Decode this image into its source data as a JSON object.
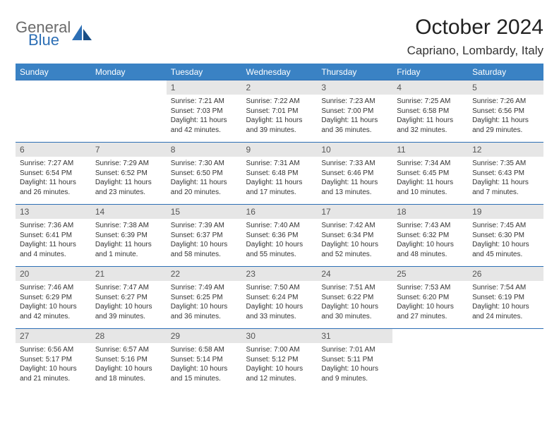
{
  "logo": {
    "general": "General",
    "blue": "Blue"
  },
  "title": "October 2024",
  "location": "Capriano, Lombardy, Italy",
  "colors": {
    "header_bg": "#3a82c4",
    "border": "#2d6fb5",
    "daynum_bg": "#e6e6e6",
    "logo_gray": "#6a6a6a",
    "logo_blue": "#2d6fb5"
  },
  "day_headers": [
    "Sunday",
    "Monday",
    "Tuesday",
    "Wednesday",
    "Thursday",
    "Friday",
    "Saturday"
  ],
  "leading_blanks": 2,
  "days": [
    {
      "n": 1,
      "sr": "7:21 AM",
      "ss": "7:03 PM",
      "dl": "11 hours and 42 minutes."
    },
    {
      "n": 2,
      "sr": "7:22 AM",
      "ss": "7:01 PM",
      "dl": "11 hours and 39 minutes."
    },
    {
      "n": 3,
      "sr": "7:23 AM",
      "ss": "7:00 PM",
      "dl": "11 hours and 36 minutes."
    },
    {
      "n": 4,
      "sr": "7:25 AM",
      "ss": "6:58 PM",
      "dl": "11 hours and 32 minutes."
    },
    {
      "n": 5,
      "sr": "7:26 AM",
      "ss": "6:56 PM",
      "dl": "11 hours and 29 minutes."
    },
    {
      "n": 6,
      "sr": "7:27 AM",
      "ss": "6:54 PM",
      "dl": "11 hours and 26 minutes."
    },
    {
      "n": 7,
      "sr": "7:29 AM",
      "ss": "6:52 PM",
      "dl": "11 hours and 23 minutes."
    },
    {
      "n": 8,
      "sr": "7:30 AM",
      "ss": "6:50 PM",
      "dl": "11 hours and 20 minutes."
    },
    {
      "n": 9,
      "sr": "7:31 AM",
      "ss": "6:48 PM",
      "dl": "11 hours and 17 minutes."
    },
    {
      "n": 10,
      "sr": "7:33 AM",
      "ss": "6:46 PM",
      "dl": "11 hours and 13 minutes."
    },
    {
      "n": 11,
      "sr": "7:34 AM",
      "ss": "6:45 PM",
      "dl": "11 hours and 10 minutes."
    },
    {
      "n": 12,
      "sr": "7:35 AM",
      "ss": "6:43 PM",
      "dl": "11 hours and 7 minutes."
    },
    {
      "n": 13,
      "sr": "7:36 AM",
      "ss": "6:41 PM",
      "dl": "11 hours and 4 minutes."
    },
    {
      "n": 14,
      "sr": "7:38 AM",
      "ss": "6:39 PM",
      "dl": "11 hours and 1 minute."
    },
    {
      "n": 15,
      "sr": "7:39 AM",
      "ss": "6:37 PM",
      "dl": "10 hours and 58 minutes."
    },
    {
      "n": 16,
      "sr": "7:40 AM",
      "ss": "6:36 PM",
      "dl": "10 hours and 55 minutes."
    },
    {
      "n": 17,
      "sr": "7:42 AM",
      "ss": "6:34 PM",
      "dl": "10 hours and 52 minutes."
    },
    {
      "n": 18,
      "sr": "7:43 AM",
      "ss": "6:32 PM",
      "dl": "10 hours and 48 minutes."
    },
    {
      "n": 19,
      "sr": "7:45 AM",
      "ss": "6:30 PM",
      "dl": "10 hours and 45 minutes."
    },
    {
      "n": 20,
      "sr": "7:46 AM",
      "ss": "6:29 PM",
      "dl": "10 hours and 42 minutes."
    },
    {
      "n": 21,
      "sr": "7:47 AM",
      "ss": "6:27 PM",
      "dl": "10 hours and 39 minutes."
    },
    {
      "n": 22,
      "sr": "7:49 AM",
      "ss": "6:25 PM",
      "dl": "10 hours and 36 minutes."
    },
    {
      "n": 23,
      "sr": "7:50 AM",
      "ss": "6:24 PM",
      "dl": "10 hours and 33 minutes."
    },
    {
      "n": 24,
      "sr": "7:51 AM",
      "ss": "6:22 PM",
      "dl": "10 hours and 30 minutes."
    },
    {
      "n": 25,
      "sr": "7:53 AM",
      "ss": "6:20 PM",
      "dl": "10 hours and 27 minutes."
    },
    {
      "n": 26,
      "sr": "7:54 AM",
      "ss": "6:19 PM",
      "dl": "10 hours and 24 minutes."
    },
    {
      "n": 27,
      "sr": "6:56 AM",
      "ss": "5:17 PM",
      "dl": "10 hours and 21 minutes."
    },
    {
      "n": 28,
      "sr": "6:57 AM",
      "ss": "5:16 PM",
      "dl": "10 hours and 18 minutes."
    },
    {
      "n": 29,
      "sr": "6:58 AM",
      "ss": "5:14 PM",
      "dl": "10 hours and 15 minutes."
    },
    {
      "n": 30,
      "sr": "7:00 AM",
      "ss": "5:12 PM",
      "dl": "10 hours and 12 minutes."
    },
    {
      "n": 31,
      "sr": "7:01 AM",
      "ss": "5:11 PM",
      "dl": "10 hours and 9 minutes."
    }
  ],
  "labels": {
    "sunrise": "Sunrise:",
    "sunset": "Sunset:",
    "daylight": "Daylight:"
  }
}
